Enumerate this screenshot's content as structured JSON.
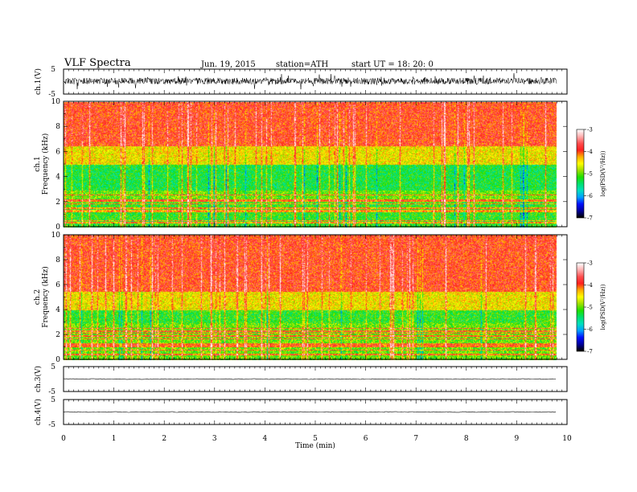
{
  "header": {
    "title": "VLF  Spectra",
    "date": "Jun. 19, 2015",
    "station": "station=ATH",
    "start": "start  UT  =   18: 20: 0"
  },
  "colors": {
    "spectrogram_scale": [
      "#000000",
      "#0000a0",
      "#0010ff",
      "#00a0ff",
      "#00e0c0",
      "#00e070",
      "#20e000",
      "#a0e000",
      "#ffff00",
      "#ffb000",
      "#ff2020",
      "#ff5050",
      "#ffb0b0",
      "#ffffff"
    ],
    "waveform": "#000000"
  },
  "chart_data": [
    {
      "type": "line",
      "panel": "ch1-waveform",
      "ylabel": "ch.1(V)",
      "ylim": [
        -5,
        5
      ],
      "yticks": [
        "5",
        "-5"
      ],
      "x_units": "min",
      "xlim": [
        0,
        10
      ],
      "data_end": 9.8,
      "description_level": {
        "mean": 0.2,
        "amplitude_range": [
          -2.5,
          2.5
        ]
      }
    },
    {
      "type": "heatmap",
      "panel": "ch1-spectrogram",
      "ylabel": "ch.1 Frequency (kHz)",
      "ylabel_top": "ch.1",
      "ylabel_bottom": "Frequency (kHz)",
      "ylim": [
        0,
        10
      ],
      "yticks": [
        "0",
        "2",
        "4",
        "6",
        "8",
        "10"
      ],
      "xlim": [
        0,
        10
      ],
      "data_end": 9.8,
      "colorbar": {
        "label": "log(PSD(V²/Hz))",
        "range": [
          -7,
          -3
        ],
        "ticks": [
          "-3",
          "-4",
          "-5",
          "-6",
          "-7"
        ]
      }
    },
    {
      "type": "heatmap",
      "panel": "ch2-spectrogram",
      "ylabel": "ch.2 Frequency (kHz)",
      "ylabel_top": "ch.2",
      "ylabel_bottom": "Frequency (kHz)",
      "ylim": [
        0,
        10
      ],
      "yticks": [
        "0",
        "2",
        "4",
        "6",
        "8",
        "10"
      ],
      "xlim": [
        0,
        10
      ],
      "data_end": 9.8,
      "colorbar": {
        "label": "log(PSD(V²/Hz))",
        "range": [
          -7,
          -3
        ],
        "ticks": [
          "-3",
          "-4",
          "-5",
          "-6",
          "-7"
        ]
      }
    },
    {
      "type": "line",
      "panel": "ch3-waveform",
      "ylabel": "ch.3(V)",
      "ylim": [
        -5,
        5
      ],
      "yticks": [
        "5",
        "-5"
      ],
      "xlim": [
        0,
        10
      ],
      "data_end": 9.8
    },
    {
      "type": "line",
      "panel": "ch4-waveform",
      "ylabel": "ch.4(V)",
      "ylim": [
        -5,
        5
      ],
      "yticks": [
        "5",
        "-5"
      ],
      "xlim": [
        0,
        10
      ],
      "data_end": 9.8,
      "xlabel": "Time  (min)",
      "xticks": [
        "0",
        "1",
        "2",
        "3",
        "4",
        "5",
        "6",
        "7",
        "8",
        "9",
        "10"
      ]
    }
  ]
}
